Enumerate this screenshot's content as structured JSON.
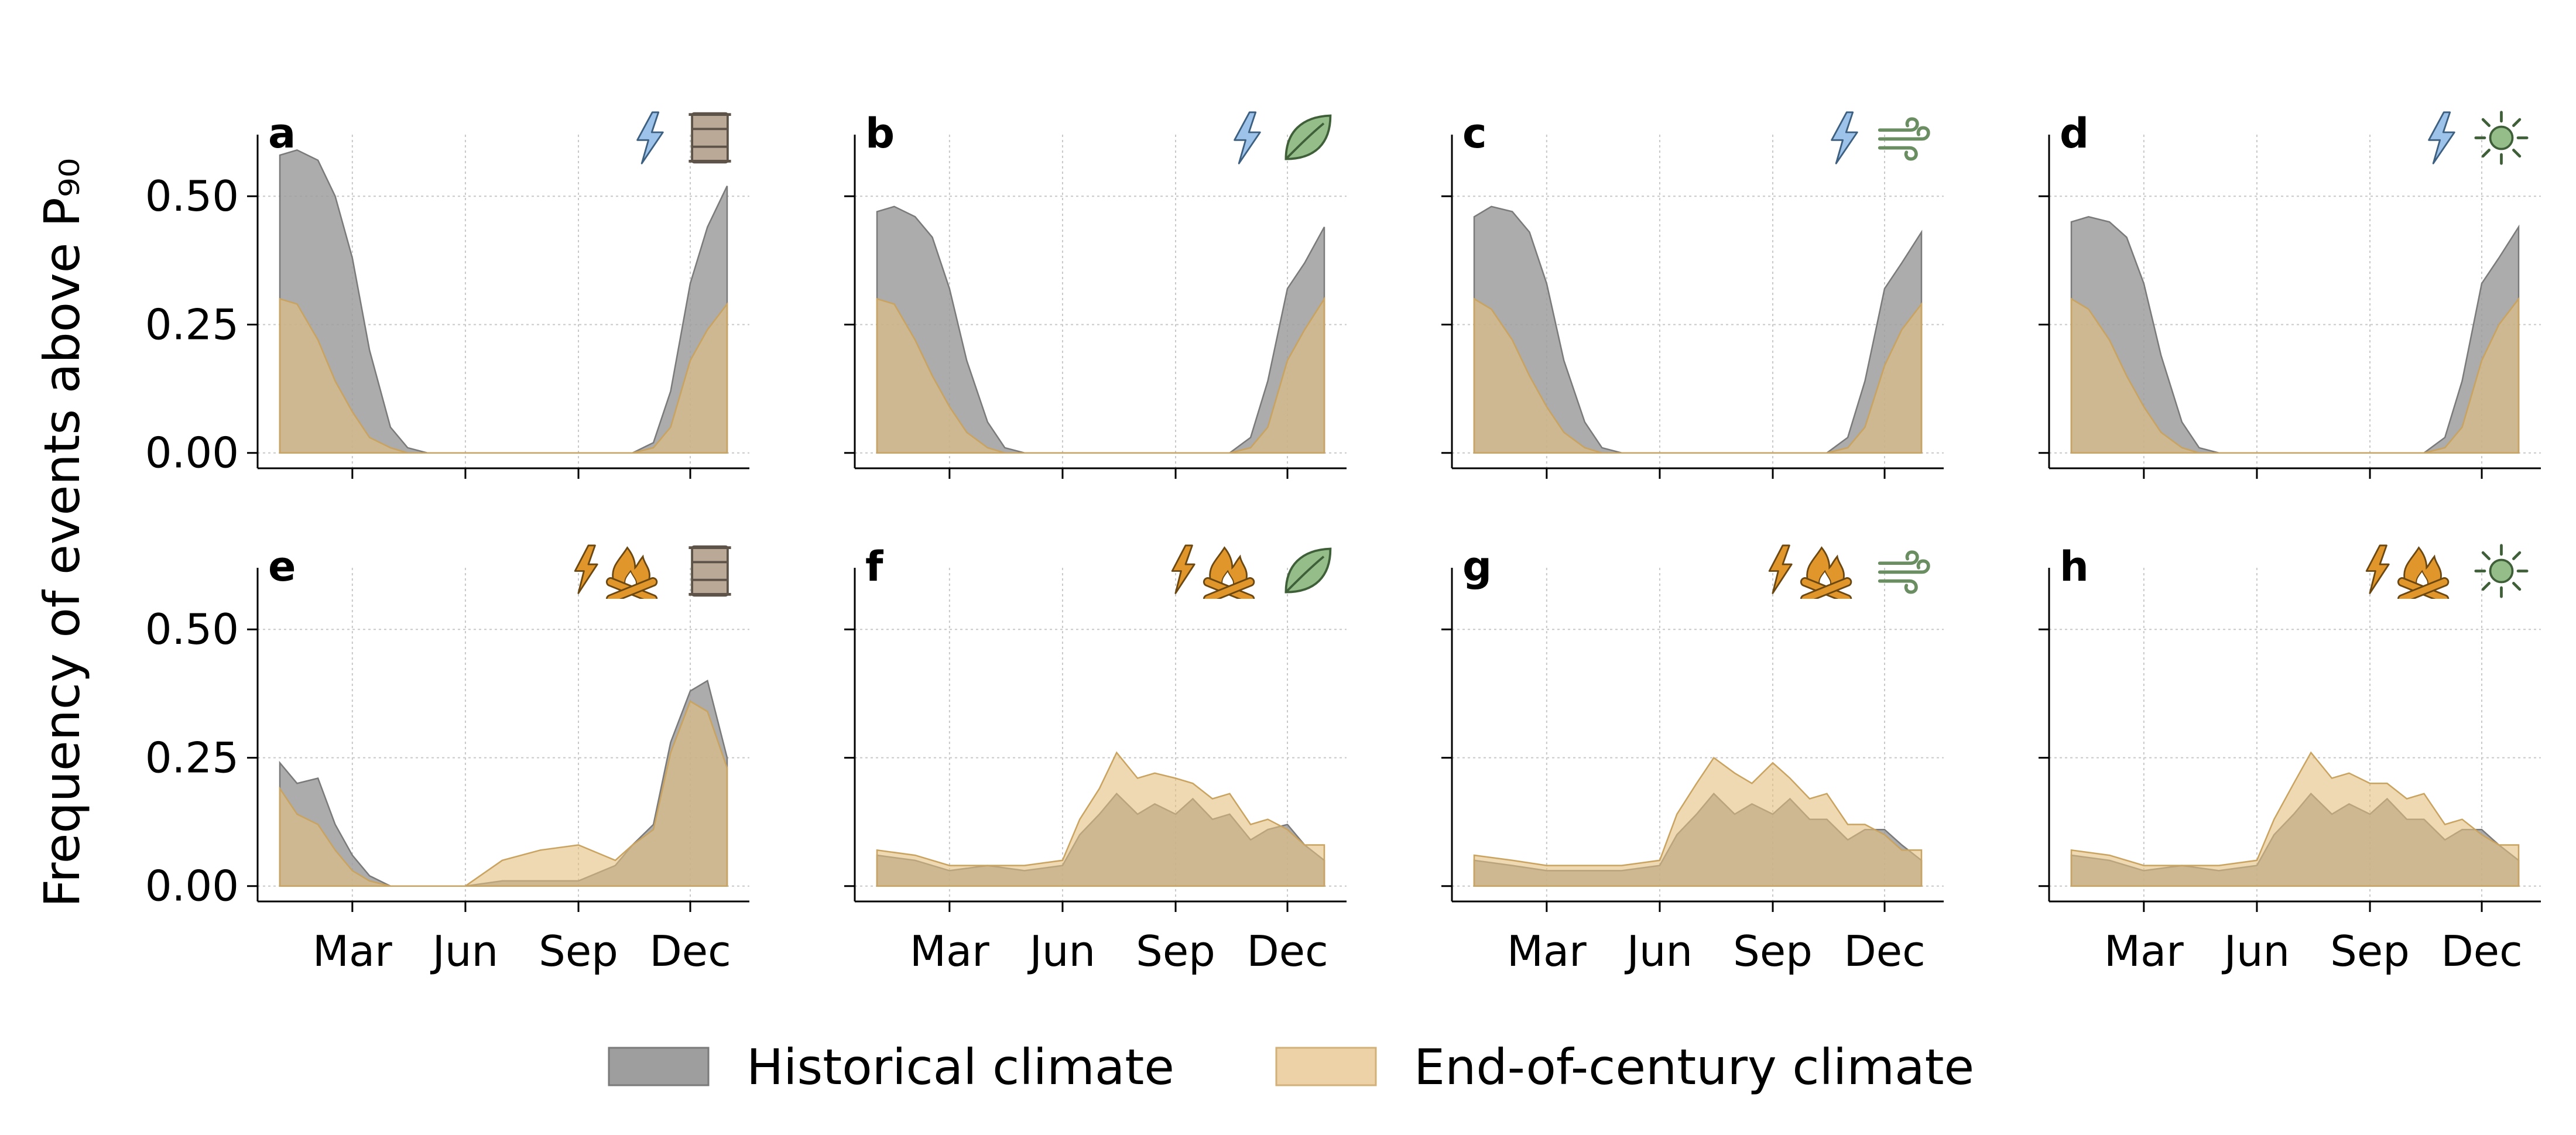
{
  "figure": {
    "ylabel": "Frequency of events above P₉₀",
    "legend": [
      {
        "label": "Historical climate",
        "color": "#9e9e9e"
      },
      {
        "label": "End-of-century climate",
        "color": "#e6c791"
      }
    ]
  },
  "colors": {
    "historical_fill": "#9e9e9e",
    "historical_edge": "#7a7a7a",
    "future_fill": "#e3c07f",
    "future_edge": "#c9a35f",
    "overlap": "#ad9574",
    "lightning_blue": "#9dc3ea",
    "lightning_orange": "#e0962a",
    "leaf_green": "#94bd8a",
    "drum_tan": "#b9a996"
  },
  "chart_data": [
    {
      "panel": "a",
      "type": "area",
      "icons": [
        "lightning-icon",
        "drum-icon"
      ],
      "x": [
        "Jan 1",
        "Jan 15",
        "Feb 1",
        "Feb 15",
        "Mar 1",
        "Mar 15",
        "Apr 1",
        "Apr 15",
        "May 1",
        "Oct 15",
        "Nov 1",
        "Nov 15",
        "Dec 1",
        "Dec 15",
        "Dec 31"
      ],
      "xticks": [
        "Mar",
        "Jun",
        "Sep",
        "Dec"
      ],
      "yticks": [
        "0.00",
        "0.25",
        "0.50"
      ],
      "ylim": [
        -0.03,
        0.62
      ],
      "grid": true,
      "series": [
        {
          "name": "Historical climate",
          "values": [
            0.58,
            0.59,
            0.57,
            0.5,
            0.38,
            0.2,
            0.05,
            0.01,
            0.0,
            0.0,
            0.02,
            0.12,
            0.33,
            0.44,
            0.52
          ]
        },
        {
          "name": "End-of-century climate",
          "values": [
            0.3,
            0.29,
            0.22,
            0.14,
            0.08,
            0.03,
            0.01,
            0.0,
            0.0,
            0.0,
            0.01,
            0.05,
            0.18,
            0.24,
            0.29
          ]
        }
      ]
    },
    {
      "panel": "b",
      "type": "area",
      "icons": [
        "lightning-icon",
        "leaf-icon"
      ],
      "x": [
        "Jan 1",
        "Jan 15",
        "Feb 1",
        "Feb 15",
        "Mar 1",
        "Mar 15",
        "Apr 1",
        "Apr 15",
        "May 1",
        "Oct 15",
        "Nov 1",
        "Nov 15",
        "Dec 1",
        "Dec 15",
        "Dec 31"
      ],
      "xticks": [
        "Mar",
        "Jun",
        "Sep",
        "Dec"
      ],
      "yticks": [
        "0.00",
        "0.25",
        "0.50"
      ],
      "ylim": [
        -0.03,
        0.62
      ],
      "grid": true,
      "series": [
        {
          "name": "Historical climate",
          "values": [
            0.47,
            0.48,
            0.46,
            0.42,
            0.32,
            0.18,
            0.06,
            0.01,
            0.0,
            0.0,
            0.03,
            0.14,
            0.32,
            0.37,
            0.44
          ]
        },
        {
          "name": "End-of-century climate",
          "values": [
            0.3,
            0.29,
            0.22,
            0.15,
            0.09,
            0.04,
            0.01,
            0.0,
            0.0,
            0.0,
            0.01,
            0.05,
            0.18,
            0.24,
            0.3
          ]
        }
      ]
    },
    {
      "panel": "c",
      "type": "area",
      "icons": [
        "lightning-icon",
        "wind-icon"
      ],
      "x": [
        "Jan 1",
        "Jan 15",
        "Feb 1",
        "Feb 15",
        "Mar 1",
        "Mar 15",
        "Apr 1",
        "Apr 15",
        "May 1",
        "Oct 15",
        "Nov 1",
        "Nov 15",
        "Dec 1",
        "Dec 15",
        "Dec 31"
      ],
      "xticks": [
        "Mar",
        "Jun",
        "Sep",
        "Dec"
      ],
      "yticks": [
        "0.00",
        "0.25",
        "0.50"
      ],
      "ylim": [
        -0.03,
        0.62
      ],
      "grid": true,
      "series": [
        {
          "name": "Historical climate",
          "values": [
            0.46,
            0.48,
            0.47,
            0.43,
            0.33,
            0.18,
            0.06,
            0.01,
            0.0,
            0.0,
            0.03,
            0.14,
            0.32,
            0.37,
            0.43
          ]
        },
        {
          "name": "End-of-century climate",
          "values": [
            0.3,
            0.28,
            0.22,
            0.15,
            0.09,
            0.04,
            0.01,
            0.0,
            0.0,
            0.0,
            0.01,
            0.05,
            0.17,
            0.24,
            0.29
          ]
        }
      ]
    },
    {
      "panel": "d",
      "type": "area",
      "icons": [
        "lightning-icon",
        "sun-icon"
      ],
      "x": [
        "Jan 1",
        "Jan 15",
        "Feb 1",
        "Feb 15",
        "Mar 1",
        "Mar 15",
        "Apr 1",
        "Apr 15",
        "May 1",
        "Oct 15",
        "Nov 1",
        "Nov 15",
        "Dec 1",
        "Dec 15",
        "Dec 31"
      ],
      "xticks": [
        "Mar",
        "Jun",
        "Sep",
        "Dec"
      ],
      "yticks": [
        "0.00",
        "0.25",
        "0.50"
      ],
      "ylim": [
        -0.03,
        0.62
      ],
      "grid": true,
      "series": [
        {
          "name": "Historical climate",
          "values": [
            0.45,
            0.46,
            0.45,
            0.42,
            0.33,
            0.19,
            0.06,
            0.01,
            0.0,
            0.0,
            0.03,
            0.14,
            0.33,
            0.38,
            0.44
          ]
        },
        {
          "name": "End-of-century climate",
          "values": [
            0.3,
            0.28,
            0.22,
            0.15,
            0.09,
            0.04,
            0.01,
            0.0,
            0.0,
            0.0,
            0.01,
            0.05,
            0.18,
            0.25,
            0.3
          ]
        }
      ]
    },
    {
      "panel": "e",
      "type": "area",
      "icons": [
        "lightning-fire-icon",
        "drum-icon"
      ],
      "x": [
        "Jan 1",
        "Jan 15",
        "Feb 1",
        "Feb 15",
        "Mar 1",
        "Mar 15",
        "Apr 1",
        "May 1",
        "Jun 1",
        "Jul 1",
        "Aug 1",
        "Sep 1",
        "Oct 1",
        "Oct 15",
        "Nov 1",
        "Nov 15",
        "Dec 1",
        "Dec 15",
        "Dec 31"
      ],
      "xticks": [
        "Mar",
        "Jun",
        "Sep",
        "Dec"
      ],
      "yticks": [
        "0.00",
        "0.25",
        "0.50"
      ],
      "ylim": [
        -0.03,
        0.62
      ],
      "grid": true,
      "series": [
        {
          "name": "Historical climate",
          "values": [
            0.24,
            0.2,
            0.21,
            0.12,
            0.06,
            0.02,
            0.0,
            0.0,
            0.0,
            0.01,
            0.01,
            0.01,
            0.04,
            0.08,
            0.12,
            0.28,
            0.38,
            0.4,
            0.25
          ]
        },
        {
          "name": "End-of-century climate",
          "values": [
            0.19,
            0.14,
            0.12,
            0.07,
            0.03,
            0.01,
            0.0,
            0.0,
            0.0,
            0.05,
            0.07,
            0.08,
            0.05,
            0.08,
            0.11,
            0.26,
            0.36,
            0.34,
            0.23
          ]
        }
      ]
    },
    {
      "panel": "f",
      "type": "area",
      "icons": [
        "lightning-fire-icon",
        "leaf-icon"
      ],
      "x": [
        "Jan 1",
        "Feb 1",
        "Mar 1",
        "Apr 1",
        "May 1",
        "Jun 1",
        "Jun 15",
        "Jul 1",
        "Jul 15",
        "Aug 1",
        "Aug 15",
        "Sep 1",
        "Sep 15",
        "Oct 1",
        "Oct 15",
        "Nov 1",
        "Nov 15",
        "Dec 1",
        "Dec 15",
        "Dec 31"
      ],
      "xticks": [
        "Mar",
        "Jun",
        "Sep",
        "Dec"
      ],
      "yticks": [
        "0.00",
        "0.25",
        "0.50"
      ],
      "ylim": [
        -0.03,
        0.62
      ],
      "grid": true,
      "series": [
        {
          "name": "Historical climate",
          "values": [
            0.06,
            0.05,
            0.03,
            0.04,
            0.03,
            0.04,
            0.1,
            0.14,
            0.18,
            0.14,
            0.16,
            0.14,
            0.17,
            0.13,
            0.14,
            0.09,
            0.11,
            0.12,
            0.08,
            0.05
          ]
        },
        {
          "name": "End-of-century climate",
          "values": [
            0.07,
            0.06,
            0.04,
            0.04,
            0.04,
            0.05,
            0.13,
            0.19,
            0.26,
            0.21,
            0.22,
            0.21,
            0.2,
            0.17,
            0.18,
            0.12,
            0.13,
            0.11,
            0.08,
            0.08
          ]
        }
      ]
    },
    {
      "panel": "g",
      "type": "area",
      "icons": [
        "lightning-fire-icon",
        "wind-icon"
      ],
      "x": [
        "Jan 1",
        "Feb 1",
        "Mar 1",
        "Apr 1",
        "May 1",
        "Jun 1",
        "Jun 15",
        "Jul 1",
        "Jul 15",
        "Aug 1",
        "Aug 15",
        "Sep 1",
        "Sep 15",
        "Oct 1",
        "Oct 15",
        "Nov 1",
        "Nov 15",
        "Dec 1",
        "Dec 15",
        "Dec 31"
      ],
      "xticks": [
        "Mar",
        "Jun",
        "Sep",
        "Dec"
      ],
      "yticks": [
        "0.00",
        "0.25",
        "0.50"
      ],
      "ylim": [
        -0.03,
        0.62
      ],
      "grid": true,
      "series": [
        {
          "name": "Historical climate",
          "values": [
            0.05,
            0.04,
            0.03,
            0.03,
            0.03,
            0.04,
            0.1,
            0.14,
            0.18,
            0.14,
            0.16,
            0.14,
            0.17,
            0.13,
            0.13,
            0.09,
            0.11,
            0.11,
            0.08,
            0.05
          ]
        },
        {
          "name": "End-of-century climate",
          "values": [
            0.06,
            0.05,
            0.04,
            0.04,
            0.04,
            0.05,
            0.14,
            0.2,
            0.25,
            0.22,
            0.2,
            0.24,
            0.21,
            0.17,
            0.18,
            0.12,
            0.12,
            0.1,
            0.07,
            0.07
          ]
        }
      ]
    },
    {
      "panel": "h",
      "type": "area",
      "icons": [
        "lightning-fire-icon",
        "sun-icon"
      ],
      "x": [
        "Jan 1",
        "Feb 1",
        "Mar 1",
        "Apr 1",
        "May 1",
        "Jun 1",
        "Jun 15",
        "Jul 1",
        "Jul 15",
        "Aug 1",
        "Aug 15",
        "Sep 1",
        "Sep 15",
        "Oct 1",
        "Oct 15",
        "Nov 1",
        "Nov 15",
        "Dec 1",
        "Dec 15",
        "Dec 31"
      ],
      "xticks": [
        "Mar",
        "Jun",
        "Sep",
        "Dec"
      ],
      "yticks": [
        "0.00",
        "0.25",
        "0.50"
      ],
      "ylim": [
        -0.03,
        0.62
      ],
      "grid": true,
      "series": [
        {
          "name": "Historical climate",
          "values": [
            0.06,
            0.05,
            0.03,
            0.04,
            0.03,
            0.04,
            0.1,
            0.14,
            0.18,
            0.14,
            0.16,
            0.14,
            0.17,
            0.13,
            0.13,
            0.09,
            0.11,
            0.11,
            0.08,
            0.05
          ]
        },
        {
          "name": "End-of-century climate",
          "values": [
            0.07,
            0.06,
            0.04,
            0.04,
            0.04,
            0.05,
            0.13,
            0.2,
            0.26,
            0.21,
            0.22,
            0.2,
            0.2,
            0.17,
            0.18,
            0.12,
            0.13,
            0.1,
            0.08,
            0.08
          ]
        }
      ]
    }
  ]
}
